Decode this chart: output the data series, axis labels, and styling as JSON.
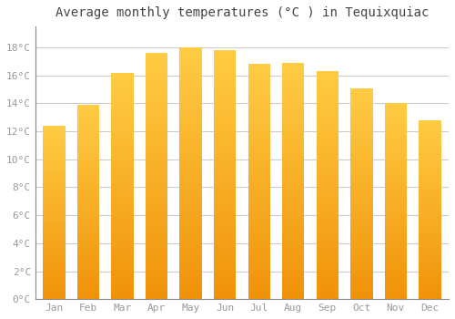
{
  "title": "Average monthly temperatures (°C ) in Tequixquiac",
  "months": [
    "Jan",
    "Feb",
    "Mar",
    "Apr",
    "May",
    "Jun",
    "Jul",
    "Aug",
    "Sep",
    "Oct",
    "Nov",
    "Dec"
  ],
  "values": [
    12.4,
    13.9,
    16.2,
    17.6,
    18.0,
    17.8,
    16.8,
    16.9,
    16.3,
    15.1,
    14.0,
    12.8
  ],
  "bar_color": "#F5A623",
  "bar_color_light": "#FFCC55",
  "background_color": "#FFFFFF",
  "plot_bg_color": "#FFFFFF",
  "grid_color": "#CCCCCC",
  "tick_label_color": "#999999",
  "title_color": "#444444",
  "ylim": [
    0,
    19.5
  ],
  "yticks": [
    0,
    2,
    4,
    6,
    8,
    10,
    12,
    14,
    16,
    18
  ],
  "ytick_labels": [
    "0°C",
    "2°C",
    "4°C",
    "6°C",
    "8°C",
    "10°C",
    "12°C",
    "14°C",
    "16°C",
    "18°C"
  ]
}
